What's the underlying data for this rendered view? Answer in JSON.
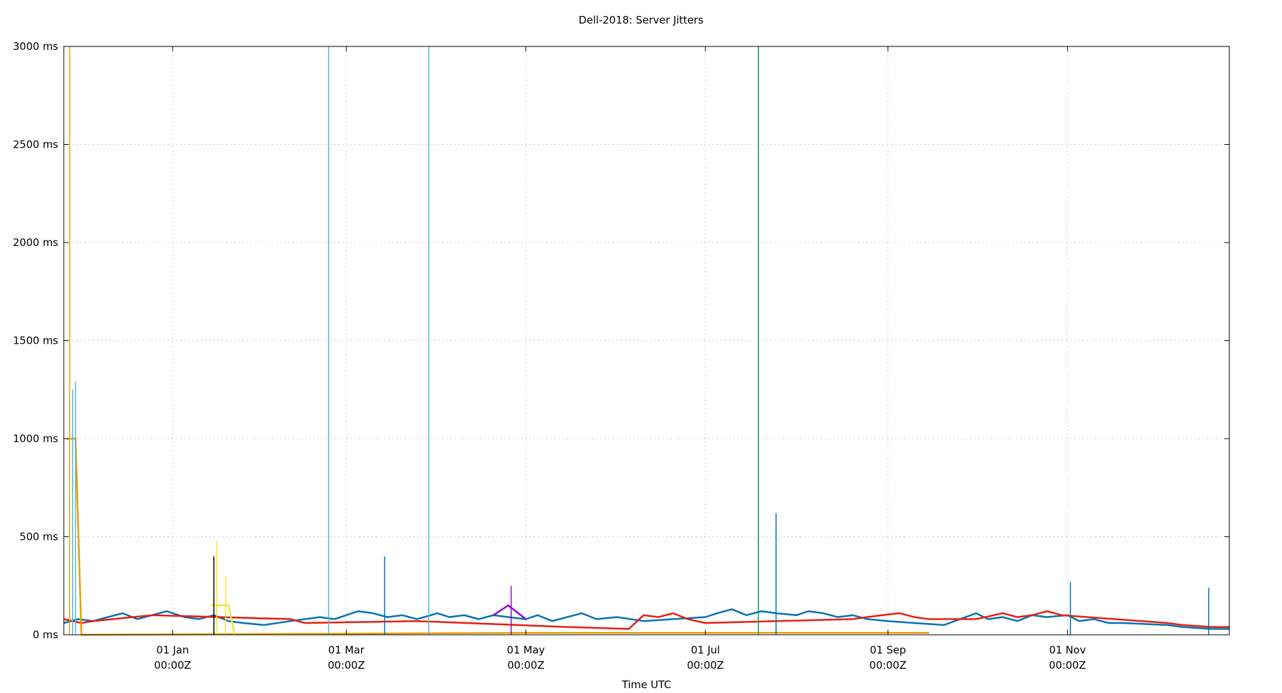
{
  "chart_data": {
    "type": "line",
    "title": "Dell-2018: Server Jitters",
    "xlabel": "Time UTC",
    "ylabel": "",
    "ylim": [
      0,
      3000
    ],
    "xlim": [
      "2017-11-25",
      "2018-12-26"
    ],
    "grid": true,
    "y_ticks": [
      {
        "value": 0,
        "label": "0 ms"
      },
      {
        "value": 500,
        "label": "500 ms"
      },
      {
        "value": 1000,
        "label": "1000 ms"
      },
      {
        "value": 1500,
        "label": "1500 ms"
      },
      {
        "value": 2000,
        "label": "2000 ms"
      },
      {
        "value": 2500,
        "label": "2500 ms"
      },
      {
        "value": 3000,
        "label": "3000 ms"
      }
    ],
    "x_ticks": [
      {
        "value": "2018-01-01",
        "label": "01 Jan",
        "sublabel": "00:00Z"
      },
      {
        "value": "2018-03-01",
        "label": "01 Mar",
        "sublabel": "00:00Z"
      },
      {
        "value": "2018-05-01",
        "label": "01 May",
        "sublabel": "00:00Z"
      },
      {
        "value": "2018-07-01",
        "label": "01 Jul",
        "sublabel": "00:00Z"
      },
      {
        "value": "2018-09-01",
        "label": "01 Sep",
        "sublabel": "00:00Z"
      },
      {
        "value": "2018-11-01",
        "label": "01 Nov",
        "sublabel": "00:00Z"
      }
    ],
    "series": [
      {
        "color": "#0072b2",
        "values": [
          [
            "2017-11-25",
            60
          ],
          [
            "2017-11-30",
            80
          ],
          [
            "2017-12-05",
            70
          ],
          [
            "2017-12-10",
            90
          ],
          [
            "2017-12-15",
            110
          ],
          [
            "2017-12-20",
            80
          ],
          [
            "2017-12-25",
            100
          ],
          [
            "2017-12-30",
            120
          ],
          [
            "2018-01-05",
            90
          ],
          [
            "2018-01-10",
            80
          ],
          [
            "2018-01-15",
            100
          ],
          [
            "2018-01-20",
            70
          ],
          [
            "2018-01-25",
            60
          ],
          [
            "2018-02-01",
            50
          ],
          [
            "2018-02-10",
            70
          ],
          [
            "2018-02-20",
            90
          ],
          [
            "2018-02-25",
            80
          ],
          [
            "2018-03-01",
            100
          ],
          [
            "2018-03-05",
            120
          ],
          [
            "2018-03-10",
            110
          ],
          [
            "2018-03-15",
            90
          ],
          [
            "2018-03-20",
            100
          ],
          [
            "2018-03-25",
            80
          ],
          [
            "2018-04-01",
            110
          ],
          [
            "2018-04-05",
            90
          ],
          [
            "2018-04-10",
            100
          ],
          [
            "2018-04-15",
            80
          ],
          [
            "2018-04-20",
            100
          ],
          [
            "2018-04-25",
            90
          ],
          [
            "2018-05-01",
            80
          ],
          [
            "2018-05-05",
            100
          ],
          [
            "2018-05-10",
            70
          ],
          [
            "2018-05-15",
            90
          ],
          [
            "2018-05-20",
            110
          ],
          [
            "2018-05-25",
            80
          ],
          [
            "2018-06-01",
            90
          ],
          [
            "2018-06-10",
            70
          ],
          [
            "2018-06-20",
            80
          ],
          [
            "2018-07-01",
            90
          ],
          [
            "2018-07-05",
            110
          ],
          [
            "2018-07-10",
            130
          ],
          [
            "2018-07-15",
            100
          ],
          [
            "2018-07-20",
            120
          ],
          [
            "2018-07-25",
            110
          ],
          [
            "2018-08-01",
            100
          ],
          [
            "2018-08-05",
            120
          ],
          [
            "2018-08-10",
            110
          ],
          [
            "2018-08-15",
            90
          ],
          [
            "2018-08-20",
            100
          ],
          [
            "2018-08-25",
            80
          ],
          [
            "2018-09-01",
            70
          ],
          [
            "2018-09-10",
            60
          ],
          [
            "2018-09-20",
            50
          ],
          [
            "2018-10-01",
            110
          ],
          [
            "2018-10-05",
            80
          ],
          [
            "2018-10-10",
            90
          ],
          [
            "2018-10-15",
            70
          ],
          [
            "2018-10-20",
            100
          ],
          [
            "2018-10-25",
            90
          ],
          [
            "2018-11-01",
            100
          ],
          [
            "2018-11-05",
            70
          ],
          [
            "2018-11-10",
            80
          ],
          [
            "2018-11-15",
            60
          ],
          [
            "2018-11-20",
            60
          ],
          [
            "2018-12-05",
            50
          ],
          [
            "2018-12-10",
            40
          ],
          [
            "2018-12-20",
            30
          ],
          [
            "2018-12-26",
            30
          ]
        ]
      },
      {
        "color": "#e51e10",
        "values": [
          [
            "2017-11-25",
            80
          ],
          [
            "2017-12-01",
            60
          ],
          [
            "2017-12-05",
            70
          ],
          [
            "2017-12-25",
            100
          ],
          [
            "2018-02-10",
            80
          ],
          [
            "2018-02-15",
            60
          ],
          [
            "2018-03-25",
            70
          ],
          [
            "2018-05-15",
            40
          ],
          [
            "2018-06-05",
            30
          ],
          [
            "2018-06-10",
            100
          ],
          [
            "2018-06-15",
            90
          ],
          [
            "2018-06-20",
            110
          ],
          [
            "2018-06-25",
            80
          ],
          [
            "2018-07-01",
            60
          ],
          [
            "2018-08-20",
            80
          ],
          [
            "2018-08-25",
            90
          ],
          [
            "2018-08-30",
            100
          ],
          [
            "2018-09-05",
            110
          ],
          [
            "2018-09-10",
            90
          ],
          [
            "2018-09-15",
            80
          ],
          [
            "2018-10-01",
            80
          ],
          [
            "2018-10-10",
            110
          ],
          [
            "2018-10-15",
            90
          ],
          [
            "2018-10-20",
            100
          ],
          [
            "2018-10-25",
            120
          ],
          [
            "2018-10-30",
            100
          ],
          [
            "2018-12-05",
            60
          ],
          [
            "2018-12-10",
            50
          ],
          [
            "2018-12-20",
            40
          ],
          [
            "2018-12-26",
            40
          ]
        ]
      },
      {
        "color": "#e69f00",
        "values": [
          [
            "2017-11-26",
            1000
          ],
          [
            "2017-11-27",
            1000
          ],
          [
            "2017-11-28",
            1000
          ],
          [
            "2017-11-29",
            1000
          ],
          [
            "2017-12-01",
            0
          ],
          [
            "2018-05-05",
            10
          ],
          [
            "2018-09-15",
            10
          ]
        ]
      },
      {
        "color": "#f0e442",
        "values": [
          [
            "2018-01-14",
            150
          ],
          [
            "2018-01-16",
            150
          ],
          [
            "2018-01-18",
            150
          ],
          [
            "2018-01-20",
            150
          ],
          [
            "2018-01-22",
            0
          ]
        ]
      },
      {
        "color": "#9400d3",
        "values": [
          [
            "2018-04-20",
            100
          ],
          [
            "2018-04-25",
            150
          ],
          [
            "2018-05-01",
            80
          ]
        ]
      }
    ],
    "spikes": [
      {
        "x": "2017-11-27",
        "value": 3000,
        "color": "#e69f00"
      },
      {
        "x": "2017-11-28",
        "value": 1250,
        "color": "#56b4e9"
      },
      {
        "x": "2017-11-29",
        "value": 1290,
        "color": "#56b4e9"
      },
      {
        "x": "2018-01-15",
        "value": 400,
        "color": "#000000"
      },
      {
        "x": "2018-01-16",
        "value": 480,
        "color": "#f0e442"
      },
      {
        "x": "2018-01-19",
        "value": 300,
        "color": "#f0e442"
      },
      {
        "x": "2018-02-23",
        "value": 3000,
        "color": "#56b4e9"
      },
      {
        "x": "2018-03-14",
        "value": 400,
        "color": "#0072b2"
      },
      {
        "x": "2018-03-29",
        "value": 3000,
        "color": "#56b4e9"
      },
      {
        "x": "2018-04-26",
        "value": 250,
        "color": "#9400d3"
      },
      {
        "x": "2018-07-19",
        "value": 3000,
        "color": "#009e73"
      },
      {
        "x": "2018-07-25",
        "value": 620,
        "color": "#0072b2"
      },
      {
        "x": "2018-11-02",
        "value": 270,
        "color": "#0072b2"
      },
      {
        "x": "2018-12-19",
        "value": 240,
        "color": "#0072b2"
      }
    ]
  }
}
